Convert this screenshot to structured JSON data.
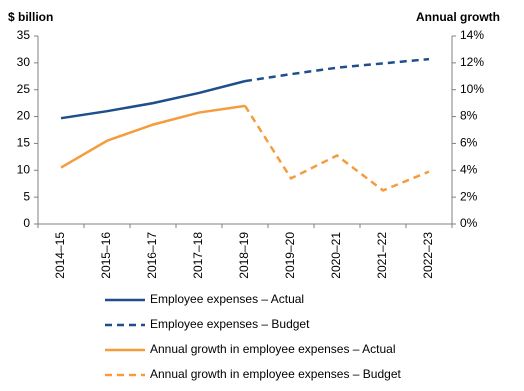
{
  "chart_data": {
    "type": "line",
    "y_label": "$ billion",
    "y2_label": "Annual growth",
    "categories": [
      "2014–15",
      "2015–16",
      "2016–17",
      "2017–18",
      "2018–19",
      "2019–20",
      "2020–21",
      "2021–22",
      "2022–23"
    ],
    "ylim": [
      0,
      35
    ],
    "yticks": [
      0,
      5,
      10,
      15,
      20,
      25,
      30,
      35
    ],
    "y2lim": [
      0,
      14
    ],
    "y2ticks": [
      {
        "value": 0,
        "label": "0%"
      },
      {
        "value": 2,
        "label": "2%"
      },
      {
        "value": 4,
        "label": "4%"
      },
      {
        "value": 6,
        "label": "6%"
      },
      {
        "value": 8,
        "label": "8%"
      },
      {
        "value": 10,
        "label": "10%"
      },
      {
        "value": 12,
        "label": "12%"
      },
      {
        "value": 14,
        "label": "14%"
      }
    ],
    "series": [
      {
        "name": "Employee expenses – Actual",
        "color": "#1f4e8c",
        "line_style": "solid",
        "values": [
          19.7,
          21.0,
          22.5,
          24.4,
          26.6,
          null,
          null,
          null,
          null
        ]
      },
      {
        "name": "Employee expenses – Budget",
        "color": "#1f4e8c",
        "line_style": "dashed",
        "values": [
          null,
          null,
          null,
          null,
          26.6,
          27.9,
          29.1,
          29.9,
          30.7
        ]
      },
      {
        "name": "Annual growth in employee expenses – Actual",
        "color": "#f59c3c",
        "line_style": "solid",
        "axis": "y2",
        "values": [
          4.2,
          6.2,
          7.4,
          8.3,
          8.8,
          null,
          null,
          null,
          null
        ]
      },
      {
        "name": "Annual growth in employee expenses – Budget",
        "color": "#f59c3c",
        "line_style": "dashed",
        "axis": "y2",
        "values": [
          null,
          null,
          null,
          null,
          8.8,
          3.4,
          5.1,
          2.5,
          3.9
        ]
      }
    ]
  }
}
